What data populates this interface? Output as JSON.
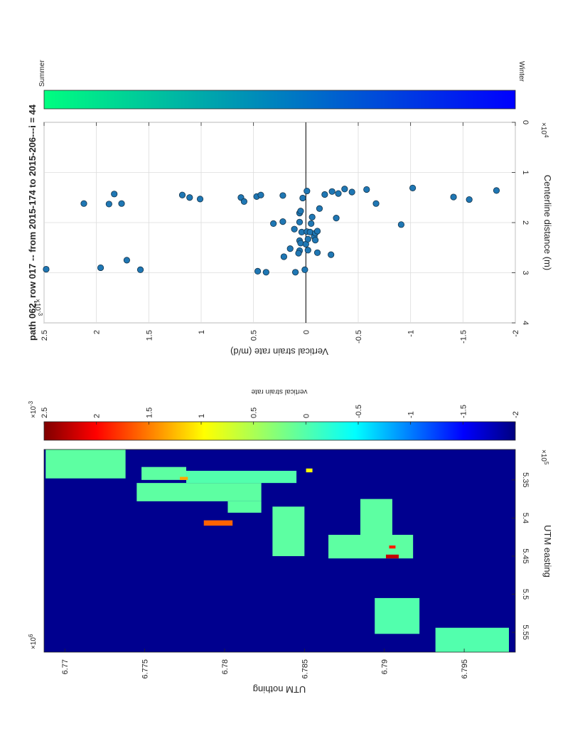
{
  "figure": {
    "title": "path 062, row 017  -- from 2015-174 to 2015-206---i = 44",
    "orientation": "rotated-90-clockwise"
  },
  "chart_data": [
    {
      "type": "scatter",
      "title": "path 062, row 017  -- from 2015-174 to 2015-206---i = 44",
      "xlabel": "Centerline distance (m)",
      "ylabel": "Vertical strain rate (m/d)",
      "x_exponent_label": "×10",
      "x_exponent": "4",
      "y_exponent_label": "×10",
      "y_exponent": "-3",
      "xlim": [
        0,
        40000
      ],
      "ylim": [
        -0.002,
        0.0025
      ],
      "x_tick_values": [
        0,
        10000,
        20000,
        30000,
        40000
      ],
      "x_tick_labels": [
        "0",
        "1",
        "2",
        "3",
        "4"
      ],
      "y_tick_values": [
        -0.002,
        -0.0015,
        -0.001,
        -0.0005,
        0,
        0.0005,
        0.001,
        0.0015,
        0.002,
        0.0025
      ],
      "y_tick_labels": [
        "-2",
        "-1.5",
        "-1",
        "-0.5",
        "0",
        "0.5",
        "1",
        "1.5",
        "2",
        "2.5"
      ],
      "grid": true,
      "zero_line": true,
      "marker_color": "#1f77b4",
      "points": [
        {
          "x": 29300,
          "y": 0.00248
        },
        {
          "x": 16200,
          "y": 0.00212
        },
        {
          "x": 29000,
          "y": 0.00196
        },
        {
          "x": 16300,
          "y": 0.00188
        },
        {
          "x": 14300,
          "y": 0.00183
        },
        {
          "x": 16200,
          "y": 0.00176
        },
        {
          "x": 27500,
          "y": 0.00171
        },
        {
          "x": 29400,
          "y": 0.00158
        },
        {
          "x": 14500,
          "y": 0.00118
        },
        {
          "x": 15000,
          "y": 0.00111
        },
        {
          "x": 15300,
          "y": 0.00101
        },
        {
          "x": 15000,
          "y": 0.00062
        },
        {
          "x": 15800,
          "y": 0.00059
        },
        {
          "x": 14800,
          "y": 0.00047
        },
        {
          "x": 14500,
          "y": 0.00043
        },
        {
          "x": 29700,
          "y": 0.00046
        },
        {
          "x": 29900,
          "y": 0.00038
        },
        {
          "x": 20200,
          "y": 0.00031
        },
        {
          "x": 19800,
          "y": 0.00022
        },
        {
          "x": 14600,
          "y": 0.00022
        },
        {
          "x": 26800,
          "y": 0.00021
        },
        {
          "x": 25200,
          "y": 0.00015
        },
        {
          "x": 29900,
          "y": 0.0001
        },
        {
          "x": 21300,
          "y": 0.00011
        },
        {
          "x": 23600,
          "y": 6e-05
        },
        {
          "x": 25600,
          "y": 6e-05
        },
        {
          "x": 26100,
          "y": 7e-05
        },
        {
          "x": 24100,
          "y": 5e-05
        },
        {
          "x": 19900,
          "y": 6e-05
        },
        {
          "x": 18100,
          "y": 6e-05
        },
        {
          "x": 17700,
          "y": 5e-05
        },
        {
          "x": 21900,
          "y": 4e-05
        },
        {
          "x": 15100,
          "y": 3e-05
        },
        {
          "x": 25500,
          "y": -2e-05
        },
        {
          "x": 29400,
          "y": 1e-05
        },
        {
          "x": 24300,
          "y": 0
        },
        {
          "x": 21800,
          "y": -1e-05
        },
        {
          "x": 23300,
          "y": -2e-05
        },
        {
          "x": 21900,
          "y": -4e-05
        },
        {
          "x": 20200,
          "y": -5e-05
        },
        {
          "x": 18900,
          "y": -6e-05
        },
        {
          "x": 22800,
          "y": -8e-05
        },
        {
          "x": 22100,
          "y": -9e-05
        },
        {
          "x": 23500,
          "y": -9e-05
        },
        {
          "x": 21700,
          "y": -0.00011
        },
        {
          "x": 26000,
          "y": -0.00011
        },
        {
          "x": 17200,
          "y": -0.00013
        },
        {
          "x": 13700,
          "y": -1e-05
        },
        {
          "x": 26400,
          "y": -0.00024
        },
        {
          "x": 19100,
          "y": -0.00029
        },
        {
          "x": 14400,
          "y": -0.00018
        },
        {
          "x": 13800,
          "y": -0.00025
        },
        {
          "x": 14200,
          "y": -0.00031
        },
        {
          "x": 13300,
          "y": -0.00037
        },
        {
          "x": 13900,
          "y": -0.00044
        },
        {
          "x": 13400,
          "y": -0.00058
        },
        {
          "x": 16200,
          "y": -0.00067
        },
        {
          "x": 20400,
          "y": -0.00091
        },
        {
          "x": 13100,
          "y": -0.00102
        },
        {
          "x": 14900,
          "y": -0.00141
        },
        {
          "x": 15400,
          "y": -0.00156
        },
        {
          "x": 13600,
          "y": -0.00182
        }
      ],
      "colorbar": {
        "low_label": "Winter",
        "high_label": "Summer",
        "low_color": "#0000ff",
        "high_color": "#00ff80"
      }
    },
    {
      "type": "heatmap",
      "xlabel": "UTM easting",
      "ylabel": "UTM nothing",
      "x_exponent_label": "×10",
      "x_exponent": "5",
      "y_exponent_label": "×10",
      "y_exponent": "6",
      "xlim": [
        531000,
        557600
      ],
      "ylim": [
        6768700,
        6798200
      ],
      "x_tick_values": [
        535000,
        540000,
        545000,
        550000,
        555000
      ],
      "x_tick_labels": [
        "5.35",
        "5.4",
        "5.45",
        "5.5",
        "5.55"
      ],
      "y_tick_values": [
        6770000,
        6775000,
        6780000,
        6785000,
        6790000,
        6795000
      ],
      "y_tick_labels": [
        "6.77",
        "6.775",
        "6.78",
        "6.785",
        "6.79",
        "6.795"
      ],
      "background_value": -0.002,
      "colormap": "jet",
      "colorbar": {
        "label": "vertical strain rate",
        "exponent_label": "×10",
        "exponent": "-3",
        "clim": [
          -0.002,
          0.0025
        ],
        "tick_values": [
          -0.002,
          -0.0015,
          -0.001,
          -0.0005,
          0,
          0.0005,
          0.001,
          0.0015,
          0.002,
          0.0025
        ],
        "tick_labels": [
          "-2",
          "-1.5",
          "-1",
          "-0.5",
          "0",
          "0.5",
          "1",
          "1.5",
          "2",
          "2.5"
        ]
      },
      "patches": [
        {
          "easting": [
            531000,
            534800
          ],
          "northing": [
            6768800,
            6773800
          ],
          "value": 0.0001
        },
        {
          "easting": [
            533300,
            535000
          ],
          "northing": [
            6774800,
            6777600
          ],
          "value": 0.0001
        },
        {
          "easting": [
            533800,
            535400
          ],
          "northing": [
            6777600,
            6784500
          ],
          "value": 5e-05
        },
        {
          "easting": [
            535400,
            537800
          ],
          "northing": [
            6774500,
            6782300
          ],
          "value": 0.0001
        },
        {
          "easting": [
            537800,
            539300
          ],
          "northing": [
            6780200,
            6782300
          ],
          "value": 0.0001
        },
        {
          "easting": [
            537500,
            543200
          ],
          "northing": [
            6788500,
            6790500
          ],
          "value": 0.0001
        },
        {
          "easting": [
            538500,
            545000
          ],
          "northing": [
            6783000,
            6785000
          ],
          "value": 0.0001
        },
        {
          "easting": [
            542200,
            545300
          ],
          "northing": [
            6786500,
            6791800
          ],
          "value": 0.0001
        },
        {
          "easting": [
            550500,
            555200
          ],
          "northing": [
            6789400,
            6792200
          ],
          "value": 5e-05
        },
        {
          "easting": [
            554400,
            557600
          ],
          "northing": [
            6793200,
            6797800
          ],
          "value": 5e-05
        },
        {
          "easting": [
            540300,
            541000
          ],
          "northing": [
            6778700,
            6780500
          ],
          "value": 0.0015
        },
        {
          "easting": [
            534600,
            535000
          ],
          "northing": [
            6777200,
            6777700
          ],
          "value": 0.0012
        },
        {
          "easting": [
            544800,
            545300
          ],
          "northing": [
            6790100,
            6790900
          ],
          "value": 0.0022
        },
        {
          "easting": [
            533500,
            534000
          ],
          "northing": [
            6785100,
            6785500
          ],
          "value": 0.0008
        },
        {
          "easting": [
            543600,
            544000
          ],
          "northing": [
            6790300,
            6790700
          ],
          "value": 0.0018
        }
      ]
    }
  ]
}
